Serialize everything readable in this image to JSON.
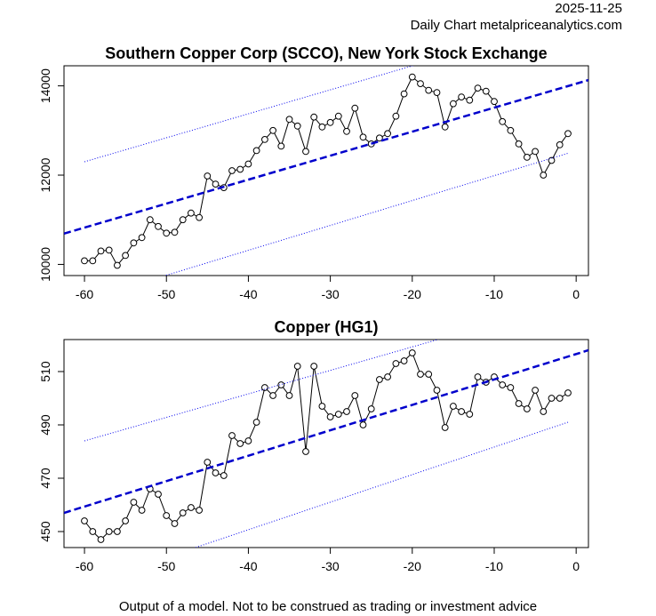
{
  "header": {
    "date": "2025-11-25",
    "subtitle": "Daily Chart metalpriceanalytics.com"
  },
  "footer": "Output of a model. Not to be construed as trading or investment advice",
  "colors": {
    "price": "#000000",
    "trend": "#0000cc",
    "band": "#0000ee"
  },
  "chart_data": [
    {
      "type": "line",
      "title": "Southern Copper Corp (SCCO), New York Stock Exchange",
      "xlabel": "",
      "ylabel": "",
      "xlim": [
        -62.5,
        1.5
      ],
      "ylim": [
        9750,
        14450
      ],
      "xticks": [
        -60,
        -50,
        -40,
        -30,
        -20,
        -10,
        0
      ],
      "xtick_labels": [
        "-60",
        "-50",
        "-40",
        "-30",
        "-20",
        "-10",
        "0"
      ],
      "yticks": [
        10000,
        12000,
        14000
      ],
      "ytick_labels": [
        "10000",
        "12000",
        "14000"
      ],
      "grid": false,
      "series": [
        {
          "name": "price",
          "x": [
            -60,
            -59,
            -58,
            -57,
            -56,
            -55,
            -54,
            -53,
            -52,
            -51,
            -50,
            -49,
            -48,
            -47,
            -46,
            -45,
            -44,
            -43,
            -42,
            -41,
            -40,
            -39,
            -38,
            -37,
            -36,
            -35,
            -34,
            -33,
            -32,
            -31,
            -30,
            -29,
            -28,
            -27,
            -26,
            -25,
            -24,
            -23,
            -22,
            -21,
            -20,
            -19,
            -18,
            -17,
            -16,
            -15,
            -14,
            -13,
            -12,
            -11,
            -10,
            -9,
            -8,
            -7,
            -6,
            -5,
            -4,
            -3,
            -2,
            -1
          ],
          "values": [
            10080,
            10080,
            10300,
            10320,
            9980,
            10200,
            10480,
            10600,
            11000,
            10850,
            10700,
            10720,
            11000,
            11150,
            11050,
            11980,
            11800,
            11720,
            12100,
            12130,
            12250,
            12550,
            12800,
            13000,
            12650,
            13250,
            13100,
            12530,
            13300,
            13080,
            13180,
            13320,
            12980,
            13500,
            12850,
            12700,
            12830,
            12930,
            13320,
            13820,
            14200,
            14050,
            13900,
            13850,
            13080,
            13600,
            13750,
            13680,
            13950,
            13880,
            13650,
            13200,
            13000,
            12700,
            12400,
            12530,
            12000,
            12330,
            12680,
            12930
          ]
        },
        {
          "name": "trend",
          "x": [
            -62.5,
            1.5
          ],
          "values": [
            10690,
            14130
          ]
        },
        {
          "name": "upper band",
          "x": [
            -60,
            -1
          ],
          "values": [
            12300,
            15470
          ]
        },
        {
          "name": "lower band",
          "x": [
            -60,
            -1
          ],
          "values": [
            9200,
            12490
          ]
        }
      ]
    },
    {
      "type": "line",
      "title": "Copper (HG1)",
      "xlabel": "",
      "ylabel": "",
      "xlim": [
        -62.5,
        1.5
      ],
      "ylim": [
        444,
        522
      ],
      "xticks": [
        -60,
        -50,
        -40,
        -30,
        -20,
        -10,
        0
      ],
      "xtick_labels": [
        "-60",
        "-50",
        "-40",
        "-30",
        "-20",
        "-10",
        "0"
      ],
      "yticks": [
        450,
        470,
        490,
        510
      ],
      "ytick_labels": [
        "450",
        "470",
        "490",
        "510"
      ],
      "grid": false,
      "series": [
        {
          "name": "price",
          "x": [
            -60,
            -59,
            -58,
            -57,
            -56,
            -55,
            -54,
            -53,
            -52,
            -51,
            -50,
            -49,
            -48,
            -47,
            -46,
            -45,
            -44,
            -43,
            -42,
            -41,
            -40,
            -39,
            -38,
            -37,
            -36,
            -35,
            -34,
            -33,
            -32,
            -31,
            -30,
            -29,
            -28,
            -27,
            -26,
            -25,
            -24,
            -23,
            -22,
            -21,
            -20,
            -19,
            -18,
            -17,
            -16,
            -15,
            -14,
            -13,
            -12,
            -11,
            -10,
            -9,
            -8,
            -7,
            -6,
            -5,
            -4,
            -3,
            -2,
            -1
          ],
          "values": [
            454,
            450,
            447,
            450,
            450,
            454,
            461,
            458,
            466,
            464,
            456,
            453,
            457,
            459,
            458,
            476,
            472,
            471,
            486,
            483,
            484,
            491,
            504,
            501,
            505,
            501,
            512,
            480,
            512,
            497,
            493,
            494,
            495,
            501,
            490,
            496,
            507,
            508,
            513,
            514,
            517,
            509,
            509,
            503,
            489,
            497,
            495,
            494,
            508,
            506,
            508,
            505,
            504,
            498,
            496,
            503,
            495,
            500,
            500,
            502
          ]
        },
        {
          "name": "trend",
          "x": [
            -62.5,
            1.5
          ],
          "values": [
            457,
            518
          ]
        },
        {
          "name": "upper band",
          "x": [
            -60,
            -1
          ],
          "values": [
            484,
            536
          ]
        },
        {
          "name": "lower band",
          "x": [
            -60,
            -1
          ],
          "values": [
            430,
            491
          ]
        }
      ]
    }
  ]
}
